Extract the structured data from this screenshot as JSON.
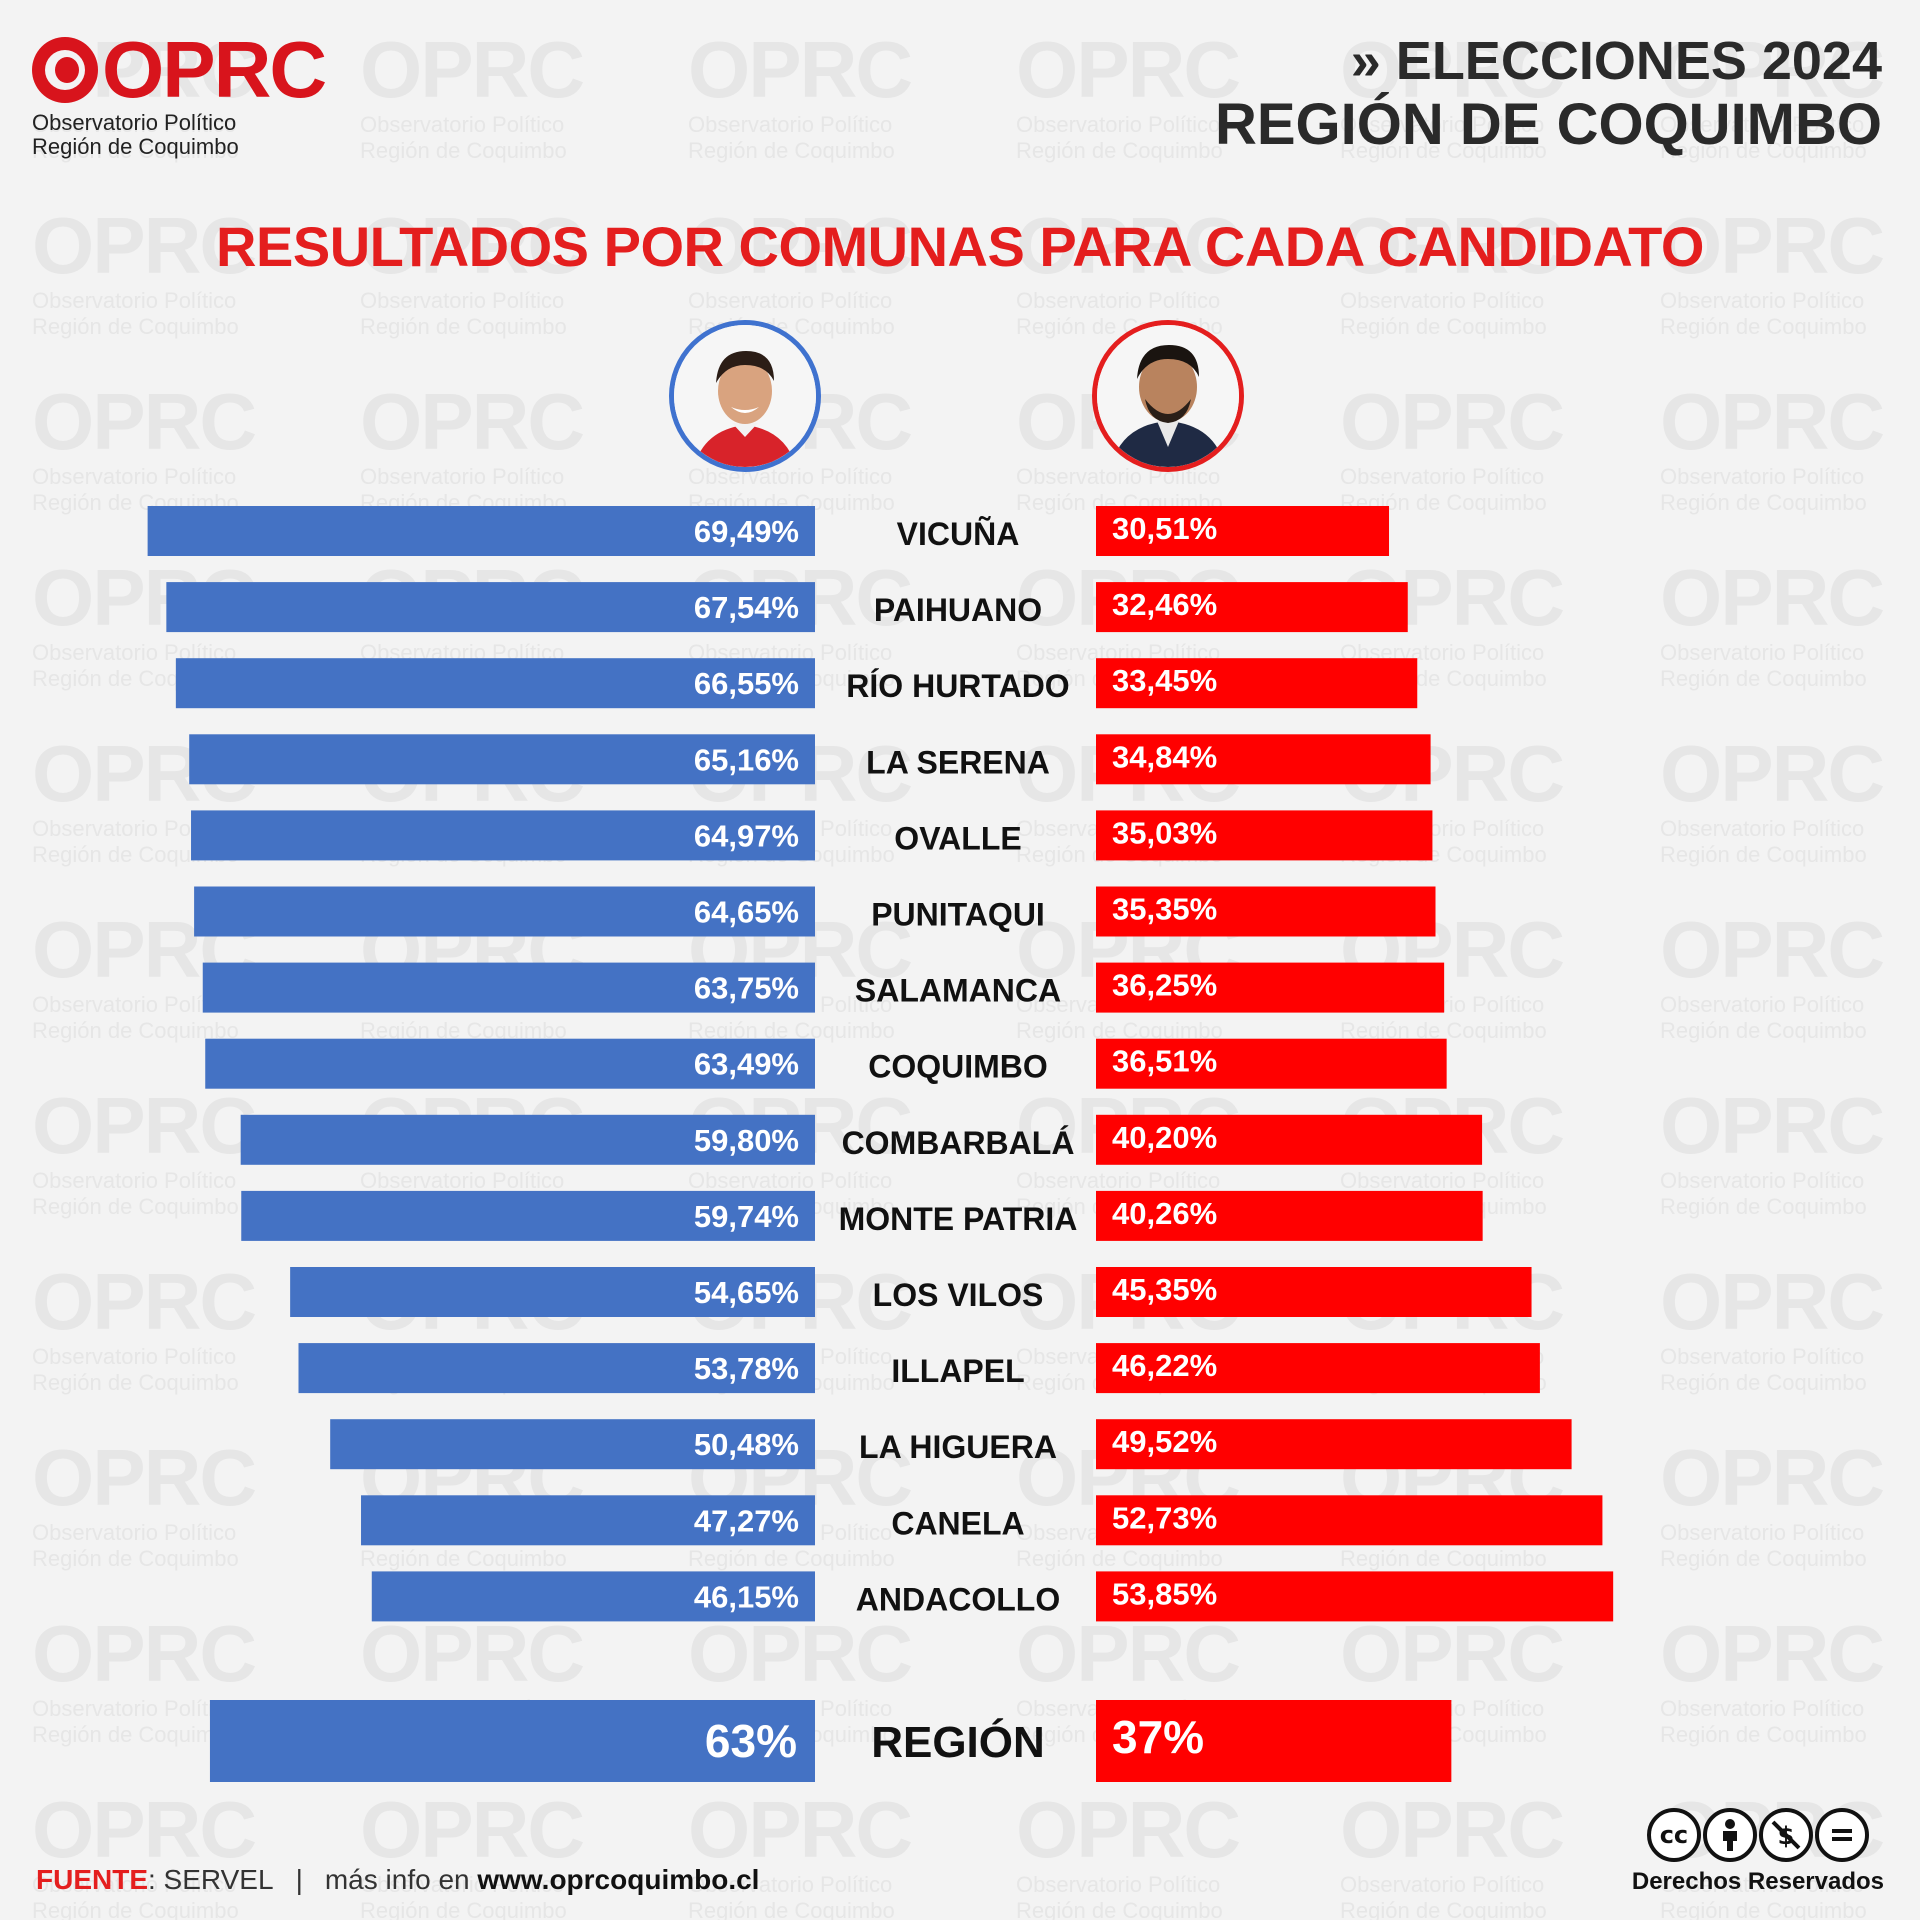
{
  "header": {
    "logo_text": "OPRC",
    "logo_sub1": "Observatorio Político",
    "logo_sub2": "Región de Coquimbo",
    "event_line1": "» ELECCIONES 2024",
    "event_line2": "REGIÓN DE COQUIMBO"
  },
  "title": "RESULTADOS POR COMUNAS PARA CADA CANDIDATO",
  "colors": {
    "left": "#4472c4",
    "right": "#ff0000",
    "title": "#e41e1e"
  },
  "chart_data": {
    "type": "bar",
    "orientation": "horizontal-diverging",
    "categories": [
      "VICUÑA",
      "PAIHUANO",
      "RÍO HURTADO",
      "LA SERENA",
      "OVALLE",
      "PUNITAQUI",
      "SALAMANCA",
      "COQUIMBO",
      "COMBARBALÁ",
      "MONTE PATRIA",
      "LOS VILOS",
      "ILLAPEL",
      "LA HIGUERA",
      "CANELA",
      "ANDACOLLO"
    ],
    "series": [
      {
        "color": "#4472c4",
        "side": "left",
        "values": [
          69.49,
          67.54,
          66.55,
          65.16,
          64.97,
          64.65,
          63.75,
          63.49,
          59.8,
          59.74,
          54.65,
          53.78,
          50.48,
          47.27,
          46.15
        ],
        "labels": [
          "69,49%",
          "67,54%",
          "66,55%",
          "65,16%",
          "64,97%",
          "64,65%",
          "63,75%",
          "63,49%",
          "59,80%",
          "59,74%",
          "54,65%",
          "53,78%",
          "50,48%",
          "47,27%",
          "46,15%"
        ]
      },
      {
        "color": "#ff0000",
        "side": "right",
        "values": [
          30.51,
          32.46,
          33.45,
          34.84,
          35.03,
          35.35,
          36.25,
          36.51,
          40.2,
          40.26,
          45.35,
          46.22,
          49.52,
          52.73,
          53.85
        ],
        "labels": [
          "30,51%",
          "32,46%",
          "33,45%",
          "34,84%",
          "35,03%",
          "35,35%",
          "36,25%",
          "36,51%",
          "40,20%",
          "40,26%",
          "45,35%",
          "46,22%",
          "49,52%",
          "52,73%",
          "53,85%"
        ]
      }
    ],
    "total": {
      "category": "REGIÓN",
      "left_value": 63,
      "right_value": 37,
      "left_label": "63%",
      "right_label": "37%"
    }
  },
  "footer": {
    "source_key": "FUENTE",
    "source_value": ": SERVEL",
    "separator": "|",
    "more_info": "más info en ",
    "website": "www.oprcoquimbo.cl",
    "rights": "Derechos Reservados"
  },
  "icons": {
    "cc": "creative-commons-icon",
    "by": "attribution-icon",
    "nc": "noncommercial-icon",
    "nd": "noderivatives-icon"
  }
}
